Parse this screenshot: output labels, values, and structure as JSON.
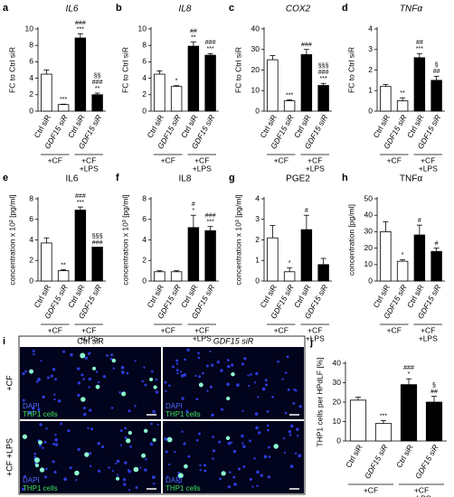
{
  "chart_data": [
    {
      "type": "bar",
      "panel": "a",
      "title": "IL6",
      "ylabel": "FC to Ctrl siR",
      "categories": [
        "Ctrl siR",
        "GDF15 siR",
        "Ctrl siR",
        "GDF15 siR"
      ],
      "colors": [
        "#ffffff",
        "#ffffff",
        "#000000",
        "#000000"
      ],
      "values": [
        4.5,
        0.8,
        8.9,
        2.0
      ],
      "errors": [
        0.5,
        0.05,
        0.5,
        0.2
      ],
      "annotations": [
        [],
        [
          "***"
        ],
        [
          "###",
          "***"
        ],
        [
          "§§",
          "###",
          "**"
        ]
      ],
      "groups": [
        [
          "+CF"
        ],
        [
          "+CF",
          "+LPS"
        ]
      ],
      "ylim": [
        0,
        10
      ],
      "yticks": [
        0,
        2,
        4,
        6,
        8,
        10
      ]
    },
    {
      "type": "bar",
      "panel": "b",
      "title": "IL8",
      "ylabel": "FC to Ctrl siR",
      "categories": [
        "Ctrl siR",
        "GDF15 siR",
        "Ctrl siR",
        "GDF15 siR"
      ],
      "colors": [
        "#ffffff",
        "#ffffff",
        "#000000",
        "#000000"
      ],
      "values": [
        4.5,
        3.0,
        7.9,
        6.8
      ],
      "errors": [
        0.4,
        0.1,
        0.5,
        0.2
      ],
      "annotations": [
        [],
        [
          "*"
        ],
        [
          "##",
          "**"
        ],
        [
          "###",
          "***"
        ]
      ],
      "groups": [
        [
          "+CF"
        ],
        [
          "+CF",
          "+LPS"
        ]
      ],
      "ylim": [
        0,
        10
      ],
      "yticks": [
        0,
        2,
        4,
        6,
        8,
        10
      ]
    },
    {
      "type": "bar",
      "panel": "c",
      "title": "COX2",
      "ylabel": "FC to Ctrl siR",
      "categories": [
        "Ctrl siR",
        "GDF15 siR",
        "Ctrl siR",
        "GDF15 siR"
      ],
      "colors": [
        "#ffffff",
        "#ffffff",
        "#000000",
        "#000000"
      ],
      "values": [
        25,
        5,
        27.5,
        12.5
      ],
      "errors": [
        2,
        0.5,
        2.5,
        1
      ],
      "annotations": [
        [],
        [
          "***"
        ],
        [
          "###"
        ],
        [
          "§§§",
          "###",
          "***"
        ]
      ],
      "groups": [
        [
          "+CF"
        ],
        [
          "+CF",
          "+LPS"
        ]
      ],
      "ylim": [
        0,
        40
      ],
      "yticks": [
        0,
        10,
        20,
        30,
        40
      ]
    },
    {
      "type": "bar",
      "panel": "d",
      "title": "TNFα",
      "ylabel": "FC to Ctrl siR",
      "categories": [
        "Ctrl siR",
        "GDF15 siR",
        "Ctrl siR",
        "GDF15 siR"
      ],
      "colors": [
        "#ffffff",
        "#ffffff",
        "#000000",
        "#000000"
      ],
      "values": [
        1.2,
        0.5,
        2.6,
        1.5
      ],
      "errors": [
        0.1,
        0.15,
        0.2,
        0.2
      ],
      "annotations": [
        [],
        [
          "**"
        ],
        [
          "##",
          "***"
        ],
        [
          "§",
          "##"
        ]
      ],
      "groups": [
        [
          "+CF"
        ],
        [
          "+CF",
          "+LPS"
        ]
      ],
      "ylim": [
        0,
        4
      ],
      "yticks": [
        0,
        1,
        2,
        3,
        4
      ]
    },
    {
      "type": "bar",
      "panel": "e",
      "title": "IL6",
      "ylabel": "concentration x 10² [pg/ml]",
      "categories": [
        "Ctrl siR",
        "GDF15 siR",
        "Ctrl siR",
        "GDF15 siR"
      ],
      "colors": [
        "#ffffff",
        "#ffffff",
        "#000000",
        "#000000"
      ],
      "values": [
        3.7,
        1.0,
        6.9,
        3.3
      ],
      "errors": [
        0.5,
        0.1,
        0.3,
        0
      ],
      "annotations": [
        [],
        [
          "**"
        ],
        [
          "###",
          "***"
        ],
        [
          "§§§",
          "###"
        ]
      ],
      "groups": [
        [
          "+CF"
        ],
        [
          "+CF",
          "+LPS"
        ]
      ],
      "ylim": [
        0,
        8
      ],
      "yticks": [
        0,
        2,
        4,
        6,
        8
      ]
    },
    {
      "type": "bar",
      "panel": "f",
      "title": "IL8",
      "ylabel": "concentration x 10³ [pg/ml]",
      "categories": [
        "Ctrl siR",
        "GDF15 siR",
        "Ctrl siR",
        "GDF15 siR"
      ],
      "colors": [
        "#ffffff",
        "#ffffff",
        "#000000",
        "#000000"
      ],
      "values": [
        0.9,
        0.9,
        5.2,
        4.9
      ],
      "errors": [
        0.1,
        0.1,
        1.2,
        0.4
      ],
      "annotations": [
        [],
        [],
        [
          "#",
          "*"
        ],
        [
          "###",
          "***"
        ]
      ],
      "groups": [
        [
          "+CF"
        ],
        [
          "+CF",
          "+LPS"
        ]
      ],
      "ylim": [
        0,
        8
      ],
      "yticks": [
        0,
        2,
        4,
        6,
        8
      ]
    },
    {
      "type": "bar",
      "panel": "g",
      "title": "PGE2",
      "ylabel": "concentration x 10³ [pg/ml]",
      "categories": [
        "Ctrl siR",
        "GDF15 siR",
        "Ctrl siR",
        "GDF15 siR"
      ],
      "colors": [
        "#ffffff",
        "#ffffff",
        "#000000",
        "#000000"
      ],
      "values": [
        2.1,
        0.45,
        2.5,
        0.8
      ],
      "errors": [
        0.6,
        0.2,
        0.7,
        0.3
      ],
      "annotations": [
        [],
        [
          "*"
        ],
        [
          "#"
        ],
        []
      ],
      "groups": [
        [
          "+CF"
        ],
        [
          "+CF",
          "+LPS"
        ]
      ],
      "ylim": [
        0,
        4
      ],
      "yticks": [
        0,
        1,
        2,
        3,
        4
      ]
    },
    {
      "type": "bar",
      "panel": "h",
      "title": "TNFα",
      "ylabel": "concentration [pg/ml]",
      "categories": [
        "Ctrl siR",
        "GDF15 siR",
        "Ctrl siR",
        "GDF15 siR"
      ],
      "colors": [
        "#ffffff",
        "#ffffff",
        "#000000",
        "#000000"
      ],
      "values": [
        30,
        12,
        28,
        18
      ],
      "errors": [
        6,
        1,
        6,
        2
      ],
      "annotations": [
        [],
        [
          "*"
        ],
        [
          "#"
        ],
        [
          "#"
        ]
      ],
      "groups": [
        [
          "+CF"
        ],
        [
          "+CF",
          "+LPS"
        ]
      ],
      "ylim": [
        0,
        50
      ],
      "yticks": [
        0,
        10,
        20,
        30,
        40,
        50
      ]
    },
    {
      "type": "bar",
      "panel": "j",
      "ylabel": "THP1 cells per HPdLF [%]",
      "categories": [
        "Ctrl siR",
        "GDF15 siR",
        "Ctrl siR",
        "GDF15 siR"
      ],
      "colors": [
        "#ffffff",
        "#ffffff",
        "#000000",
        "#000000"
      ],
      "values": [
        21,
        9,
        29,
        20
      ],
      "errors": [
        1.5,
        1.5,
        3,
        3
      ],
      "annotations": [
        [],
        [
          "***"
        ],
        [
          "###",
          "*"
        ],
        [
          "§",
          "##"
        ]
      ],
      "groups": [
        [
          "+CF"
        ],
        [
          "+CF",
          "+LPS"
        ]
      ],
      "ylim": [
        0,
        40
      ],
      "yticks": [
        0,
        10,
        20,
        30,
        40
      ]
    }
  ],
  "panel_i": {
    "label": "i",
    "columns": [
      "Ctrl siR",
      "GDF15 siR"
    ],
    "rows": [
      "+CF",
      "+CF +LPS"
    ],
    "stains": [
      "DAPI",
      "THP1 cells"
    ]
  }
}
